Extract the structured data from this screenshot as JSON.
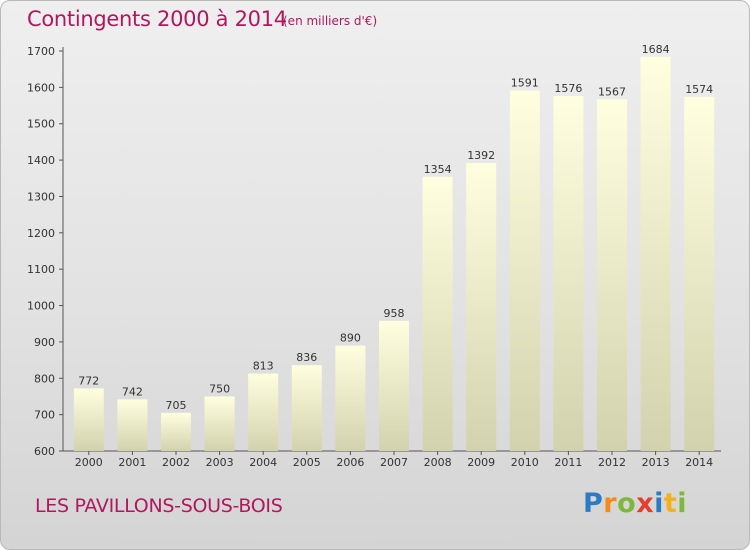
{
  "title": "Contingents 2000 à 2014",
  "subtitle": "(en milliers d'€)",
  "location": "LES PAVILLONS-SOUS-BOIS",
  "brand": "Proxiti",
  "colors": {
    "accent": "#b0185e",
    "bar_top": "#ffffe0",
    "bar_bottom": "#d2d2ae"
  },
  "chart_data": {
    "type": "bar",
    "categories": [
      "2000",
      "2001",
      "2002",
      "2003",
      "2004",
      "2005",
      "2006",
      "2007",
      "2008",
      "2009",
      "2010",
      "2011",
      "2012",
      "2013",
      "2014"
    ],
    "values": [
      772,
      742,
      705,
      750,
      813,
      836,
      890,
      958,
      1354,
      1392,
      1591,
      1576,
      1567,
      1684,
      1574
    ],
    "ylim": [
      600,
      1700
    ],
    "yticks": [
      600,
      700,
      800,
      900,
      1000,
      1100,
      1200,
      1300,
      1400,
      1500,
      1600,
      1700
    ],
    "grid": false
  }
}
